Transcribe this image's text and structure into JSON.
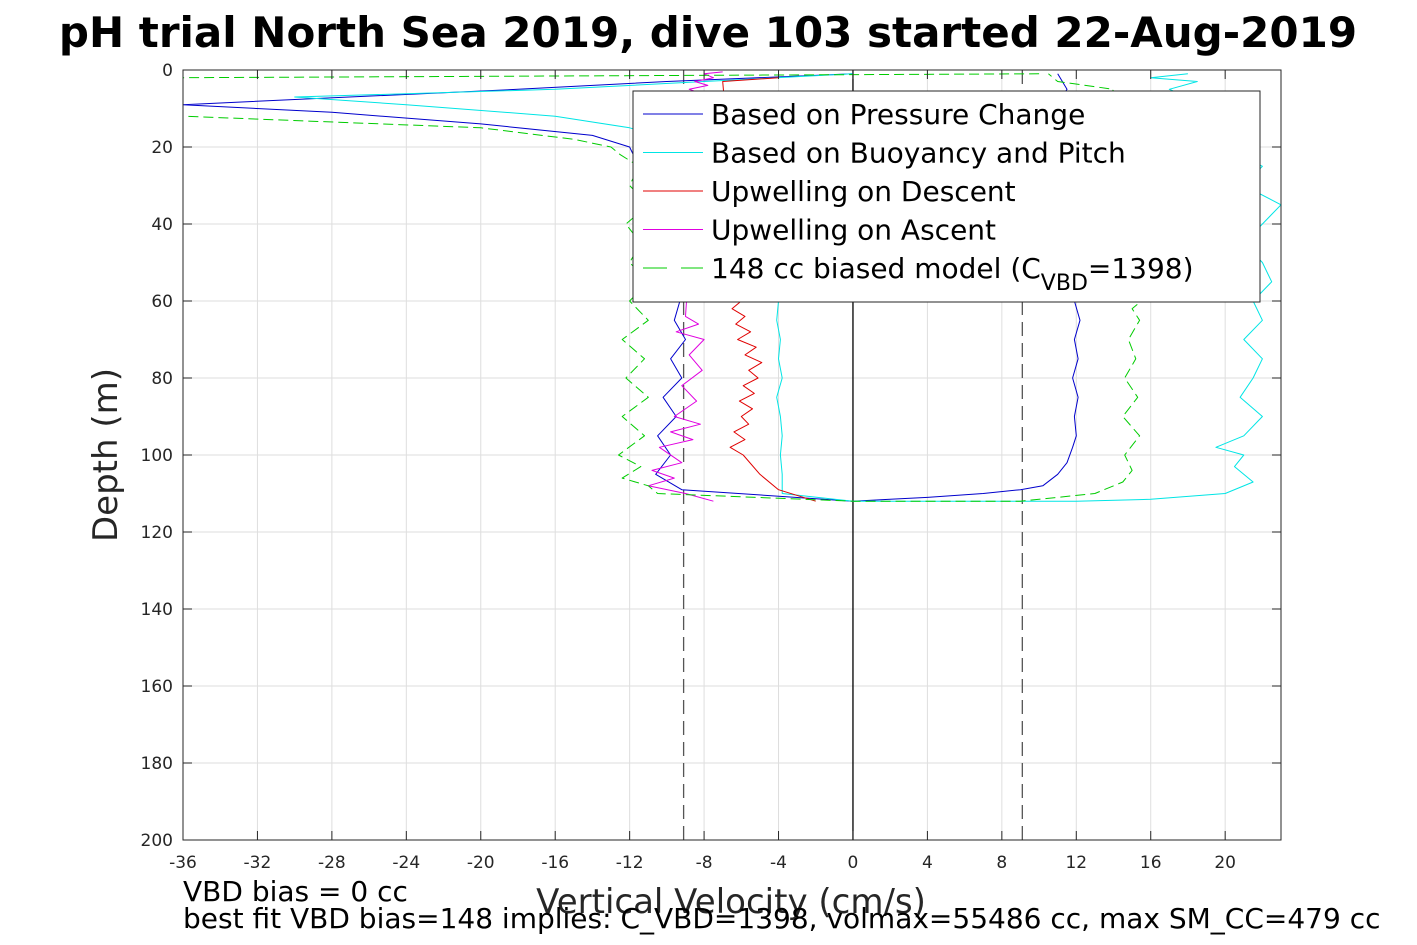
{
  "chart_data": {
    "type": "line",
    "title": "pH trial North Sea 2019, dive 103 started 22-Aug-2019",
    "xlabel": "Vertical Velocity (cm/s)",
    "ylabel": "Depth (m)",
    "xlim": [
      -36,
      23
    ],
    "ylim": [
      0,
      200
    ],
    "y_reversed": true,
    "grid": true,
    "xticks": [
      -36,
      -32,
      -28,
      -24,
      -20,
      -16,
      -12,
      -8,
      -4,
      0,
      4,
      8,
      12,
      16,
      20
    ],
    "yticks": [
      0,
      20,
      40,
      60,
      80,
      100,
      120,
      140,
      160,
      180,
      200
    ],
    "reference_lines": [
      {
        "x": -9.1,
        "style": "dashed",
        "color": "#555555"
      },
      {
        "x": 9.1,
        "style": "dashed",
        "color": "#555555"
      },
      {
        "x": 0,
        "style": "solid",
        "color": "#000000"
      }
    ],
    "legend": {
      "placement": "top-right",
      "entries": [
        {
          "label": "Based on Pressure Change",
          "color": "#0000cc",
          "style": "solid"
        },
        {
          "label": "Based on Buoyancy and Pitch",
          "color": "#00e5e5",
          "style": "solid"
        },
        {
          "label": "Upwelling on Descent",
          "color": "#e00000",
          "style": "solid"
        },
        {
          "label": "Upwelling on Ascent",
          "color": "#e000e0",
          "style": "solid"
        },
        {
          "label_main": "148 cc biased model (C",
          "label_sub": "VBD",
          "label_end": "=1398)",
          "color": "#00cc00",
          "style": "dashed"
        }
      ]
    },
    "series": [
      {
        "name": "Based on Pressure Change",
        "color": "#0000cc",
        "style": "solid",
        "x": [
          0,
          -10,
          -18,
          -36,
          -28,
          -20,
          -14,
          -12,
          -11.5,
          -10.8,
          -10.5,
          -10,
          -10.2,
          -9.6,
          -9.8,
          -9.3,
          -9.6,
          -9.0,
          -9.8,
          -9.2,
          -10.2,
          -9.5,
          -10.5,
          -9.8,
          -10.6,
          -9.2,
          0,
          2,
          4,
          7,
          9,
          10.2,
          11,
          11.5,
          11.8,
          12,
          11.9,
          12.1,
          11.8,
          12.1,
          11.9,
          12.2,
          11.9,
          12.2,
          11.8,
          12,
          11.9,
          12,
          11.7,
          11,
          10.5,
          11.2,
          10.8,
          11.5,
          11
        ],
        "y": [
          1,
          3,
          5,
          9,
          11,
          14,
          17,
          20,
          25,
          30,
          35,
          40,
          45,
          50,
          55,
          60,
          65,
          70,
          75,
          80,
          85,
          90,
          95,
          100,
          105,
          109,
          112,
          111.5,
          111,
          110,
          109,
          108,
          105,
          102,
          98,
          95,
          90,
          85,
          80,
          75,
          70,
          65,
          60,
          55,
          50,
          45,
          40,
          35,
          30,
          25,
          20,
          15,
          10,
          5,
          1
        ]
      },
      {
        "name": "Based on Buoyancy and Pitch",
        "color": "#00e5e5",
        "style": "solid",
        "x": [
          0,
          -8,
          -16,
          -30,
          -24,
          -16,
          -12,
          -10,
          -9,
          -7,
          -5,
          -4.2,
          -4.0,
          -4.1,
          -3.9,
          -4.0,
          -3.8,
          -4.1,
          -3.9,
          -3.8,
          -3.9,
          -3.8,
          -3.8,
          0,
          4,
          8,
          12,
          16,
          20,
          21.5,
          20.5,
          21,
          19.5,
          21,
          22,
          20.8,
          21.5,
          22,
          21,
          22,
          21.5,
          22.5,
          22,
          21,
          22,
          23,
          21,
          22,
          20,
          21,
          20,
          18,
          17,
          18.5,
          16,
          18
        ],
        "y": [
          1,
          3,
          5,
          7,
          9,
          12,
          15,
          18,
          22,
          30,
          40,
          50,
          60,
          65,
          70,
          75,
          80,
          85,
          90,
          95,
          100,
          105,
          110,
          112,
          112,
          112,
          112,
          111.5,
          110,
          107,
          103,
          100,
          98,
          95,
          90,
          85,
          80,
          75,
          70,
          65,
          60,
          55,
          50,
          45,
          40,
          35,
          30,
          25,
          20,
          15,
          10,
          7,
          5,
          3,
          2,
          1
        ]
      },
      {
        "name": "Upwelling on Descent",
        "color": "#e00000",
        "style": "solid",
        "x": [
          -4,
          -7,
          -6,
          -6.5,
          -5.8,
          -6.3,
          -5.5,
          -6.2,
          -5.2,
          -5.8,
          -4.9,
          -5.6,
          -5.1,
          -5.9,
          -5.3,
          -6.1,
          -5.4,
          -6.0,
          -5.6,
          -6.4,
          -5.8,
          -6.6,
          -5.9,
          -5.0,
          -4.0,
          -2.0
        ],
        "y": [
          2,
          3,
          60,
          62,
          64,
          66,
          68,
          70,
          72,
          74,
          76,
          78,
          80,
          82,
          84,
          86,
          88,
          90,
          92,
          94,
          96,
          98,
          100,
          105,
          109,
          112
        ]
      },
      {
        "name": "Upwelling on Ascent",
        "color": "#e000e0",
        "style": "solid",
        "x": [
          -7,
          -8,
          -7.5,
          -8.5,
          -7.8,
          -8.8,
          -8.2,
          -9.0,
          -8.3,
          -9.5,
          -8.0,
          -8.8,
          -8.1,
          -9.2,
          -8.4,
          -9.6,
          -8.2,
          -9.8,
          -8.6,
          -10.4,
          -9.2,
          -10.8,
          -9.6,
          -11,
          -9.0,
          -7.5
        ],
        "y": [
          0.5,
          1,
          2,
          3,
          4,
          5,
          6,
          64,
          66,
          68,
          70,
          74,
          78,
          82,
          86,
          90,
          92,
          94,
          96,
          98,
          102,
          104,
          106,
          108,
          110,
          112
        ]
      },
      {
        "name": "148 cc biased model (CVBD=1398)",
        "color": "#00cc00",
        "style": "dashed",
        "x": [
          10,
          -36,
          -36,
          -20,
          -15,
          -13,
          -12.5,
          -11.5,
          -12,
          -11,
          -12.2,
          -11.4,
          -12,
          -11,
          -12,
          -11,
          -12.4,
          -11.2,
          -12.2,
          -11,
          -12.4,
          -11.2,
          -12.6,
          -11.4,
          -12.4,
          -11.0,
          -10.5,
          0,
          9,
          13,
          14.5,
          15,
          14.6,
          15.4,
          14.5,
          15.3,
          14.6,
          15.2,
          14.8,
          15.4,
          15.0,
          16,
          16,
          13,
          14,
          11,
          10.5
        ],
        "y": [
          1,
          2,
          12,
          15,
          18,
          20,
          22,
          25,
          30,
          35,
          40,
          45,
          50,
          55,
          60,
          65,
          70,
          75,
          80,
          85,
          90,
          95,
          100,
          103,
          106,
          108,
          110,
          112,
          112,
          110,
          107,
          104,
          100,
          95,
          90,
          85,
          80,
          75,
          70,
          65,
          62,
          58,
          40,
          15,
          5,
          3,
          1
        ]
      }
    ]
  },
  "footer": {
    "line1": "VBD bias = 0 cc",
    "line2": "best fit VBD bias=148 implies: C_VBD=1398, volmax=55486 cc, max SM_CC=479 cc"
  }
}
